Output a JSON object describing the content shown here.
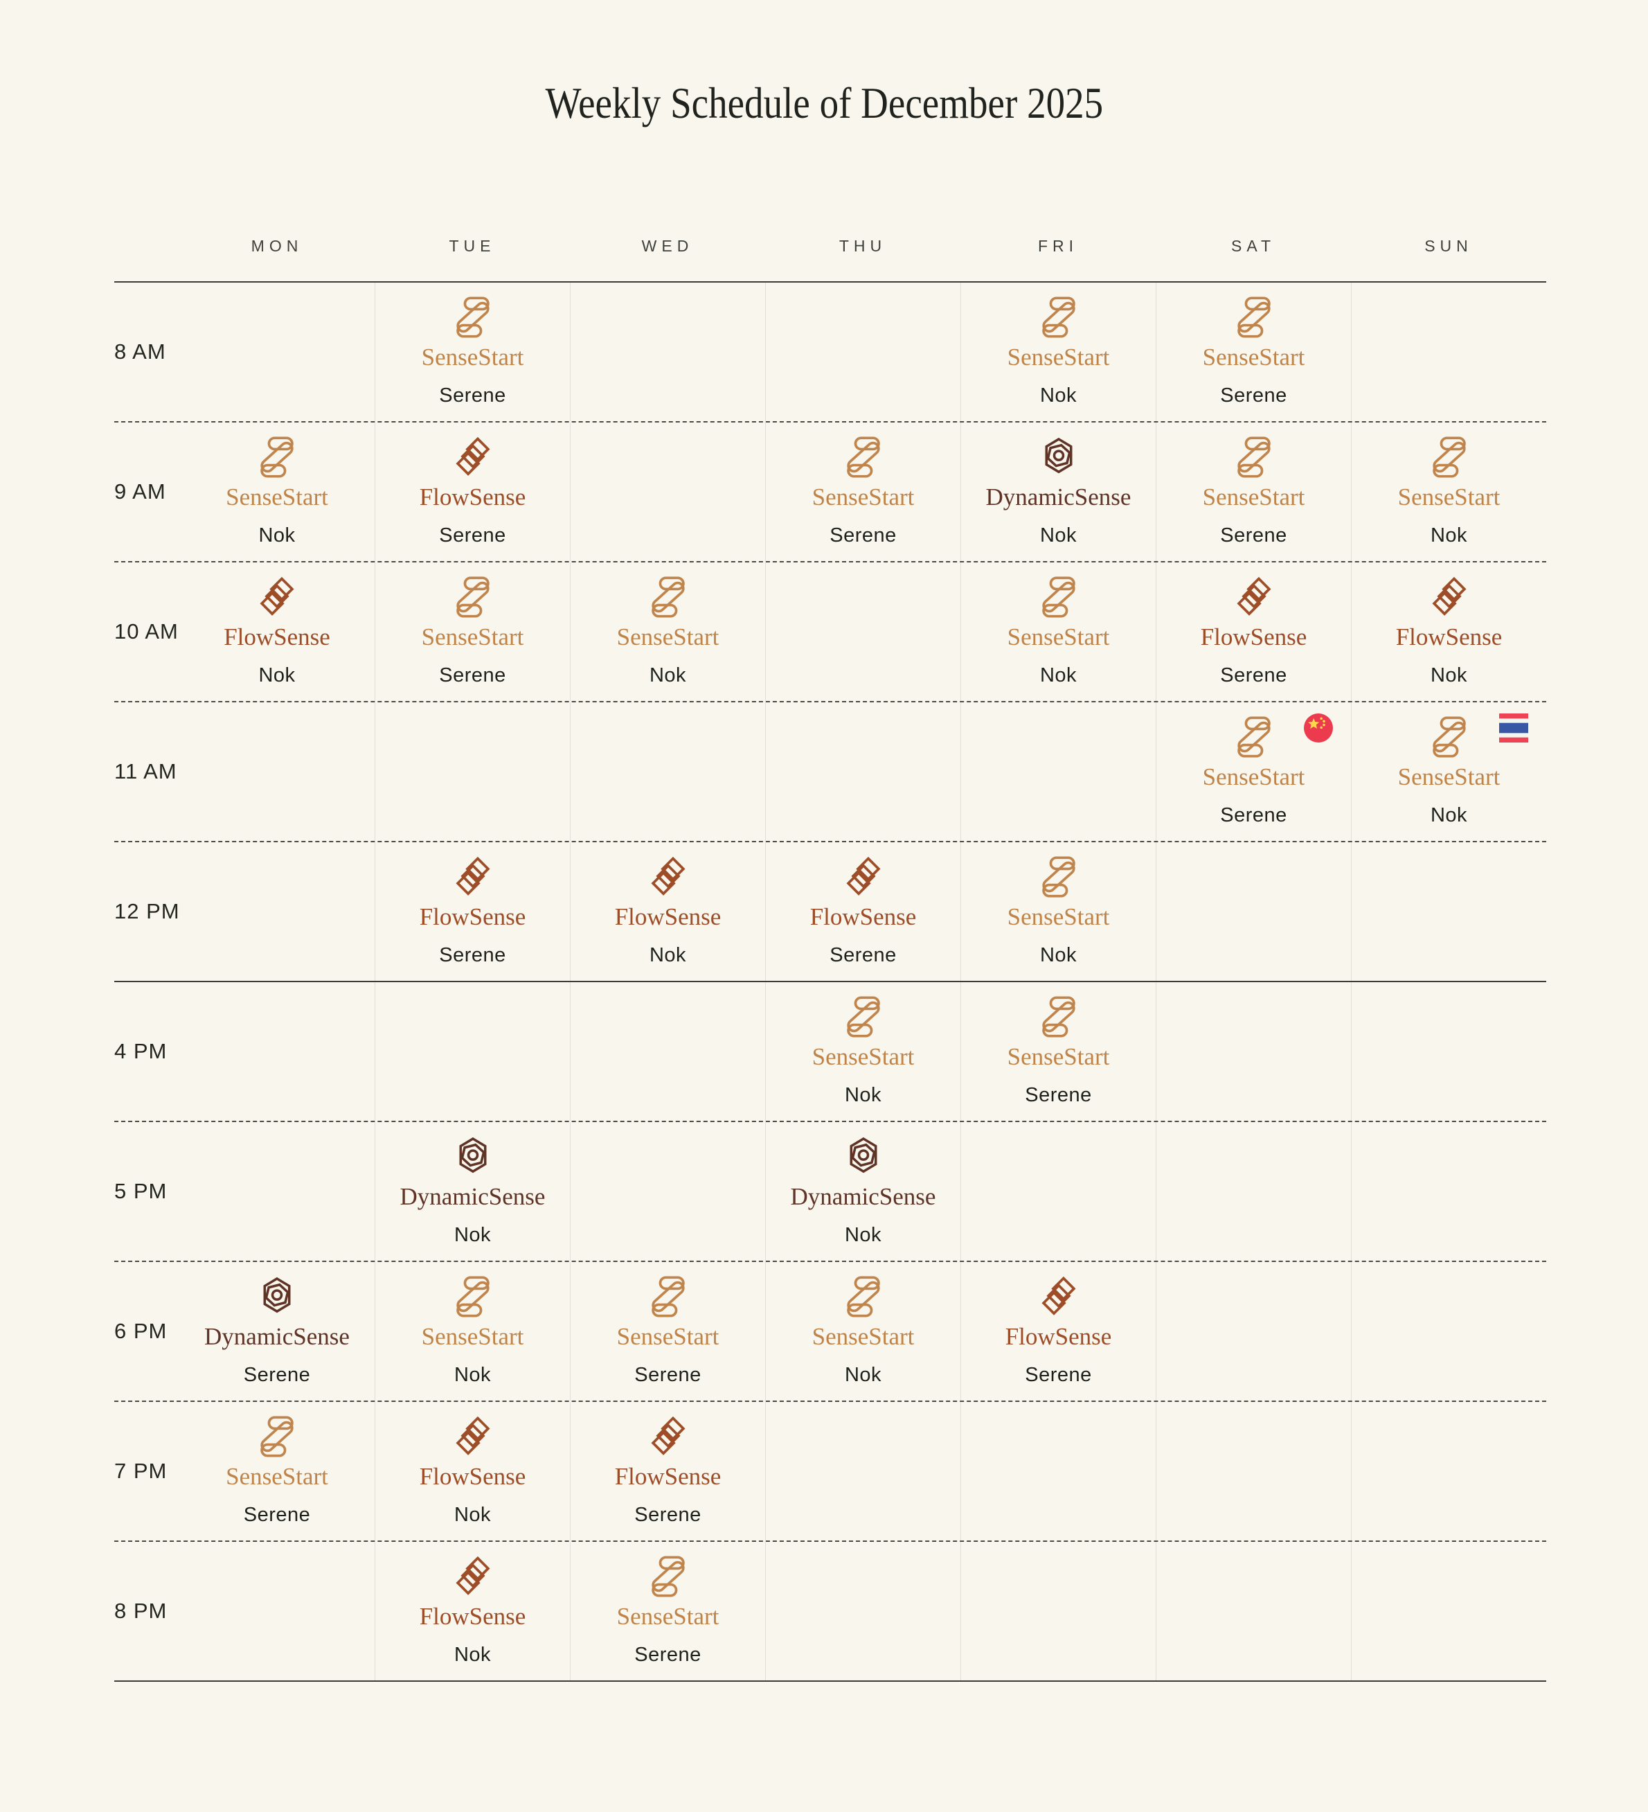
{
  "title": "Weekly Schedule of December 2025",
  "day_headers": [
    "MON",
    "TUE",
    "WED",
    "THU",
    "FRI",
    "SAT",
    "SUN"
  ],
  "services": {
    "SenseStart": {
      "text_color": "#c08449",
      "icon": "sensestart-icon"
    },
    "FlowSense": {
      "text_color": "#9d4d28",
      "icon": "flowsense-icon"
    },
    "DynamicSense": {
      "text_color": "#5f3427",
      "icon": "dynamicsense-icon"
    }
  },
  "colors": {
    "background": "#f9f6ee",
    "title_text": "#1f221d",
    "header_text": "#3d403a",
    "time_text": "#23261f",
    "person_text": "#1d201b",
    "column_line": "#e8ddc8",
    "solid_line": "#3c3c37",
    "china_flag_red": "#ec3b4e",
    "china_flag_yellow": "#ffd84d",
    "thailand_flag_red": "#ee4255",
    "thailand_flag_blue": "#3757a6"
  },
  "time_rows": [
    {
      "time": "8 AM",
      "separator": "dashed",
      "cells": [
        null,
        {
          "service": "SenseStart",
          "person": "Serene"
        },
        null,
        null,
        {
          "service": "SenseStart",
          "person": "Nok"
        },
        {
          "service": "SenseStart",
          "person": "Serene"
        },
        null
      ]
    },
    {
      "time": "9 AM",
      "separator": "dashed",
      "cells": [
        {
          "service": "SenseStart",
          "person": "Nok"
        },
        {
          "service": "FlowSense",
          "person": "Serene"
        },
        null,
        {
          "service": "SenseStart",
          "person": "Serene"
        },
        {
          "service": "DynamicSense",
          "person": "Nok"
        },
        {
          "service": "SenseStart",
          "person": "Serene"
        },
        {
          "service": "SenseStart",
          "person": "Nok"
        }
      ]
    },
    {
      "time": "10 AM",
      "separator": "dashed",
      "cells": [
        {
          "service": "FlowSense",
          "person": "Nok"
        },
        {
          "service": "SenseStart",
          "person": "Serene"
        },
        {
          "service": "SenseStart",
          "person": "Nok"
        },
        null,
        {
          "service": "SenseStart",
          "person": "Nok"
        },
        {
          "service": "FlowSense",
          "person": "Serene"
        },
        {
          "service": "FlowSense",
          "person": "Nok"
        }
      ]
    },
    {
      "time": "11 AM",
      "separator": "dashed",
      "cells": [
        null,
        null,
        null,
        null,
        null,
        {
          "service": "SenseStart",
          "person": "Serene",
          "flag": "china"
        },
        {
          "service": "SenseStart",
          "person": "Nok",
          "flag": "thailand"
        }
      ]
    },
    {
      "time": "12 PM",
      "separator": "solid",
      "cells": [
        null,
        {
          "service": "FlowSense",
          "person": "Serene"
        },
        {
          "service": "FlowSense",
          "person": "Nok"
        },
        {
          "service": "FlowSense",
          "person": "Serene"
        },
        {
          "service": "SenseStart",
          "person": "Nok"
        },
        null,
        null
      ]
    },
    {
      "time": "4 PM",
      "separator": "dashed",
      "cells": [
        null,
        null,
        null,
        {
          "service": "SenseStart",
          "person": "Nok"
        },
        {
          "service": "SenseStart",
          "person": "Serene"
        },
        null,
        null
      ]
    },
    {
      "time": "5 PM",
      "separator": "dashed",
      "cells": [
        null,
        {
          "service": "DynamicSense",
          "person": "Nok"
        },
        null,
        {
          "service": "DynamicSense",
          "person": "Nok"
        },
        null,
        null,
        null
      ]
    },
    {
      "time": "6 PM",
      "separator": "dashed",
      "cells": [
        {
          "service": "DynamicSense",
          "person": "Serene"
        },
        {
          "service": "SenseStart",
          "person": "Nok"
        },
        {
          "service": "SenseStart",
          "person": "Serene"
        },
        {
          "service": "SenseStart",
          "person": "Nok"
        },
        {
          "service": "FlowSense",
          "person": "Serene"
        },
        null,
        null
      ]
    },
    {
      "time": "7 PM",
      "separator": "dashed",
      "cells": [
        {
          "service": "SenseStart",
          "person": "Serene"
        },
        {
          "service": "FlowSense",
          "person": "Nok"
        },
        {
          "service": "FlowSense",
          "person": "Serene"
        },
        null,
        null,
        null,
        null
      ]
    },
    {
      "time": "8 PM",
      "separator": "solid",
      "cells": [
        null,
        {
          "service": "FlowSense",
          "person": "Nok"
        },
        {
          "service": "SenseStart",
          "person": "Serene"
        },
        null,
        null,
        null,
        null
      ]
    }
  ],
  "flags": {
    "china": "china-flag-icon",
    "thailand": "thailand-flag-icon"
  }
}
